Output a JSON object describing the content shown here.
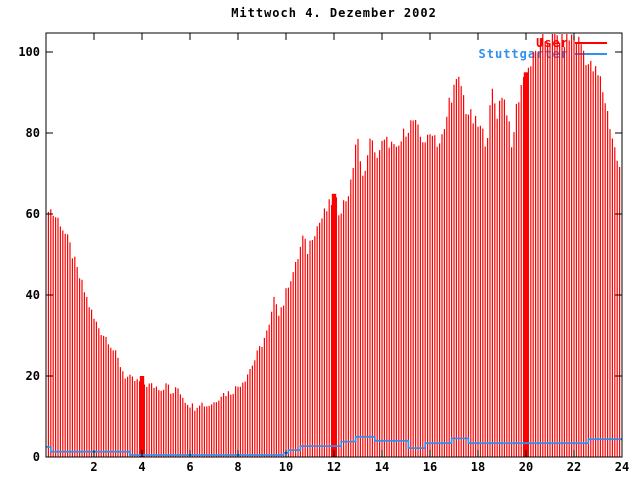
{
  "chart_data": {
    "type": "bar",
    "title": "Mittwoch 4. Dezember 2002",
    "xlabel": "",
    "ylabel": "",
    "x_unit": "hour of day",
    "xlim": [
      0,
      24
    ],
    "ylim": [
      0,
      100
    ],
    "x_ticks": [
      2,
      4,
      6,
      8,
      10,
      12,
      14,
      16,
      18,
      20,
      22,
      24
    ],
    "y_ticks": [
      0,
      20,
      40,
      60,
      80,
      100
    ],
    "grid": "off",
    "legend_position": "top-right-inside",
    "series": [
      {
        "name": "User",
        "color": "#ff0000",
        "style": "impulses",
        "sample_interval_hours": 0.1,
        "envelope_points": [
          [
            0.1,
            62
          ],
          [
            0.3,
            60
          ],
          [
            0.6,
            58
          ],
          [
            1.0,
            52
          ],
          [
            1.3,
            46
          ],
          [
            1.65,
            40
          ],
          [
            2.0,
            34
          ],
          [
            2.3,
            31
          ],
          [
            2.6,
            29
          ],
          [
            3.0,
            24
          ],
          [
            3.3,
            20
          ],
          [
            3.6,
            19
          ],
          [
            3.9,
            18.5
          ],
          [
            4.1,
            18
          ],
          [
            4.5,
            17.5
          ],
          [
            4.9,
            17
          ],
          [
            5.0,
            19
          ],
          [
            5.2,
            15.5
          ],
          [
            5.5,
            17
          ],
          [
            5.8,
            14
          ],
          [
            6.0,
            13
          ],
          [
            6.2,
            12.3
          ],
          [
            6.4,
            13.5
          ],
          [
            6.7,
            12.7
          ],
          [
            7.0,
            13.5
          ],
          [
            7.3,
            15.5
          ],
          [
            7.7,
            16
          ],
          [
            8.0,
            17.5
          ],
          [
            8.3,
            19.5
          ],
          [
            8.7,
            24
          ],
          [
            9.0,
            28
          ],
          [
            9.3,
            32
          ],
          [
            9.55,
            40
          ],
          [
            9.7,
            36
          ],
          [
            9.9,
            38
          ],
          [
            10.1,
            43
          ],
          [
            10.4,
            47
          ],
          [
            10.7,
            54
          ],
          [
            10.9,
            51
          ],
          [
            11.1,
            55
          ],
          [
            11.4,
            58
          ],
          [
            11.7,
            61
          ],
          [
            12.0,
            64
          ],
          [
            12.2,
            61
          ],
          [
            12.45,
            63
          ],
          [
            12.7,
            67
          ],
          [
            12.95,
            80
          ],
          [
            13.1,
            72
          ],
          [
            13.35,
            70
          ],
          [
            13.5,
            80
          ],
          [
            13.7,
            74
          ],
          [
            14.0,
            77
          ],
          [
            14.3,
            78
          ],
          [
            14.6,
            75
          ],
          [
            15.0,
            81
          ],
          [
            15.3,
            83
          ],
          [
            15.6,
            79
          ],
          [
            15.9,
            78
          ],
          [
            16.1,
            81
          ],
          [
            16.35,
            77
          ],
          [
            16.6,
            80
          ],
          [
            16.8,
            88
          ],
          [
            17.0,
            91
          ],
          [
            17.25,
            93
          ],
          [
            17.5,
            86
          ],
          [
            17.8,
            83
          ],
          [
            18.1,
            81
          ],
          [
            18.35,
            78
          ],
          [
            18.6,
            90
          ],
          [
            18.8,
            85
          ],
          [
            19.0,
            90
          ],
          [
            19.2,
            86
          ],
          [
            19.4,
            76
          ],
          [
            19.6,
            86
          ],
          [
            19.8,
            92
          ],
          [
            20.0,
            95
          ],
          [
            20.2,
            97
          ],
          [
            20.5,
            101
          ],
          [
            20.8,
            103
          ],
          [
            21.2,
            104
          ],
          [
            21.6,
            103
          ],
          [
            22.0,
            104
          ],
          [
            22.3,
            102
          ],
          [
            22.6,
            97
          ],
          [
            22.9,
            95
          ],
          [
            23.1,
            93
          ],
          [
            23.3,
            88
          ],
          [
            23.5,
            82
          ],
          [
            23.7,
            76
          ],
          [
            23.9,
            71
          ],
          [
            24.0,
            70
          ]
        ]
      },
      {
        "name": "Stuttgarter",
        "color": "#3090f0",
        "style": "steps",
        "points": [
          [
            0.0,
            2.5
          ],
          [
            0.2,
            1.3
          ],
          [
            3.5,
            0.5
          ],
          [
            9.9,
            1.0
          ],
          [
            10.1,
            1.7
          ],
          [
            10.6,
            2.7
          ],
          [
            12.3,
            3.8
          ],
          [
            12.9,
            5.0
          ],
          [
            13.7,
            4.0
          ],
          [
            15.1,
            2.2
          ],
          [
            15.8,
            3.4
          ],
          [
            16.9,
            4.6
          ],
          [
            17.6,
            3.4
          ],
          [
            22.6,
            4.4
          ],
          [
            24.0,
            4.4
          ]
        ]
      }
    ],
    "event_bars": [
      {
        "hour": 4,
        "value": 20
      },
      {
        "hour": 12,
        "value": 65
      },
      {
        "hour": 20,
        "value": 95
      }
    ]
  },
  "colors": {
    "bars": "#ff0000",
    "line": "#3090f0",
    "frame": "#000000",
    "background": "#ffffff"
  }
}
